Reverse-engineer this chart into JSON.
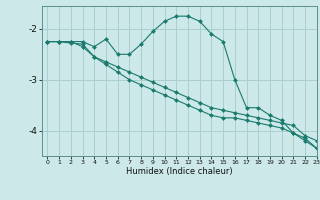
{
  "background_color": "#cce8e8",
  "grid_color": "#aacfcf",
  "line_color": "#1a7a6e",
  "marker_color": "#1a7a6e",
  "xlabel": "Humidex (Indice chaleur)",
  "xlim": [
    -0.5,
    23
  ],
  "ylim": [
    -4.5,
    -1.55
  ],
  "yticks": [
    -4,
    -3,
    -2
  ],
  "xticks": [
    0,
    1,
    2,
    3,
    4,
    5,
    6,
    7,
    8,
    9,
    10,
    11,
    12,
    13,
    14,
    15,
    16,
    17,
    18,
    19,
    20,
    21,
    22,
    23
  ],
  "series": [
    {
      "x": [
        0,
        1,
        2,
        3,
        4,
        5,
        6,
        7,
        8,
        9,
        10,
        11,
        12,
        13,
        14,
        15,
        16,
        17,
        18,
        19,
        20,
        21,
        22,
        23
      ],
      "y": [
        -2.25,
        -2.25,
        -2.25,
        -2.25,
        -2.35,
        -2.2,
        -2.5,
        -2.5,
        -2.3,
        -2.05,
        -1.85,
        -1.75,
        -1.75,
        -1.85,
        -2.1,
        -2.25,
        -3.0,
        -3.55,
        -3.55,
        -3.7,
        -3.8,
        -4.05,
        -4.2,
        -4.35
      ]
    },
    {
      "x": [
        0,
        1,
        2,
        3,
        4,
        5,
        6,
        7,
        8,
        9,
        10,
        11,
        12,
        13,
        14,
        15,
        16,
        17,
        18,
        19,
        20,
        21,
        22,
        23
      ],
      "y": [
        -2.25,
        -2.25,
        -2.25,
        -2.35,
        -2.55,
        -2.65,
        -2.75,
        -2.85,
        -2.95,
        -3.05,
        -3.15,
        -3.25,
        -3.35,
        -3.45,
        -3.55,
        -3.6,
        -3.65,
        -3.7,
        -3.75,
        -3.8,
        -3.85,
        -3.9,
        -4.1,
        -4.2
      ]
    },
    {
      "x": [
        0,
        1,
        2,
        3,
        4,
        5,
        6,
        7,
        8,
        9,
        10,
        11,
        12,
        13,
        14,
        15,
        16,
        17,
        18,
        19,
        20,
        21,
        22,
        23
      ],
      "y": [
        -2.25,
        -2.25,
        -2.28,
        -2.3,
        -2.55,
        -2.7,
        -2.85,
        -3.0,
        -3.1,
        -3.2,
        -3.3,
        -3.4,
        -3.5,
        -3.6,
        -3.7,
        -3.75,
        -3.75,
        -3.8,
        -3.85,
        -3.9,
        -3.95,
        -4.05,
        -4.15,
        -4.35
      ]
    }
  ]
}
